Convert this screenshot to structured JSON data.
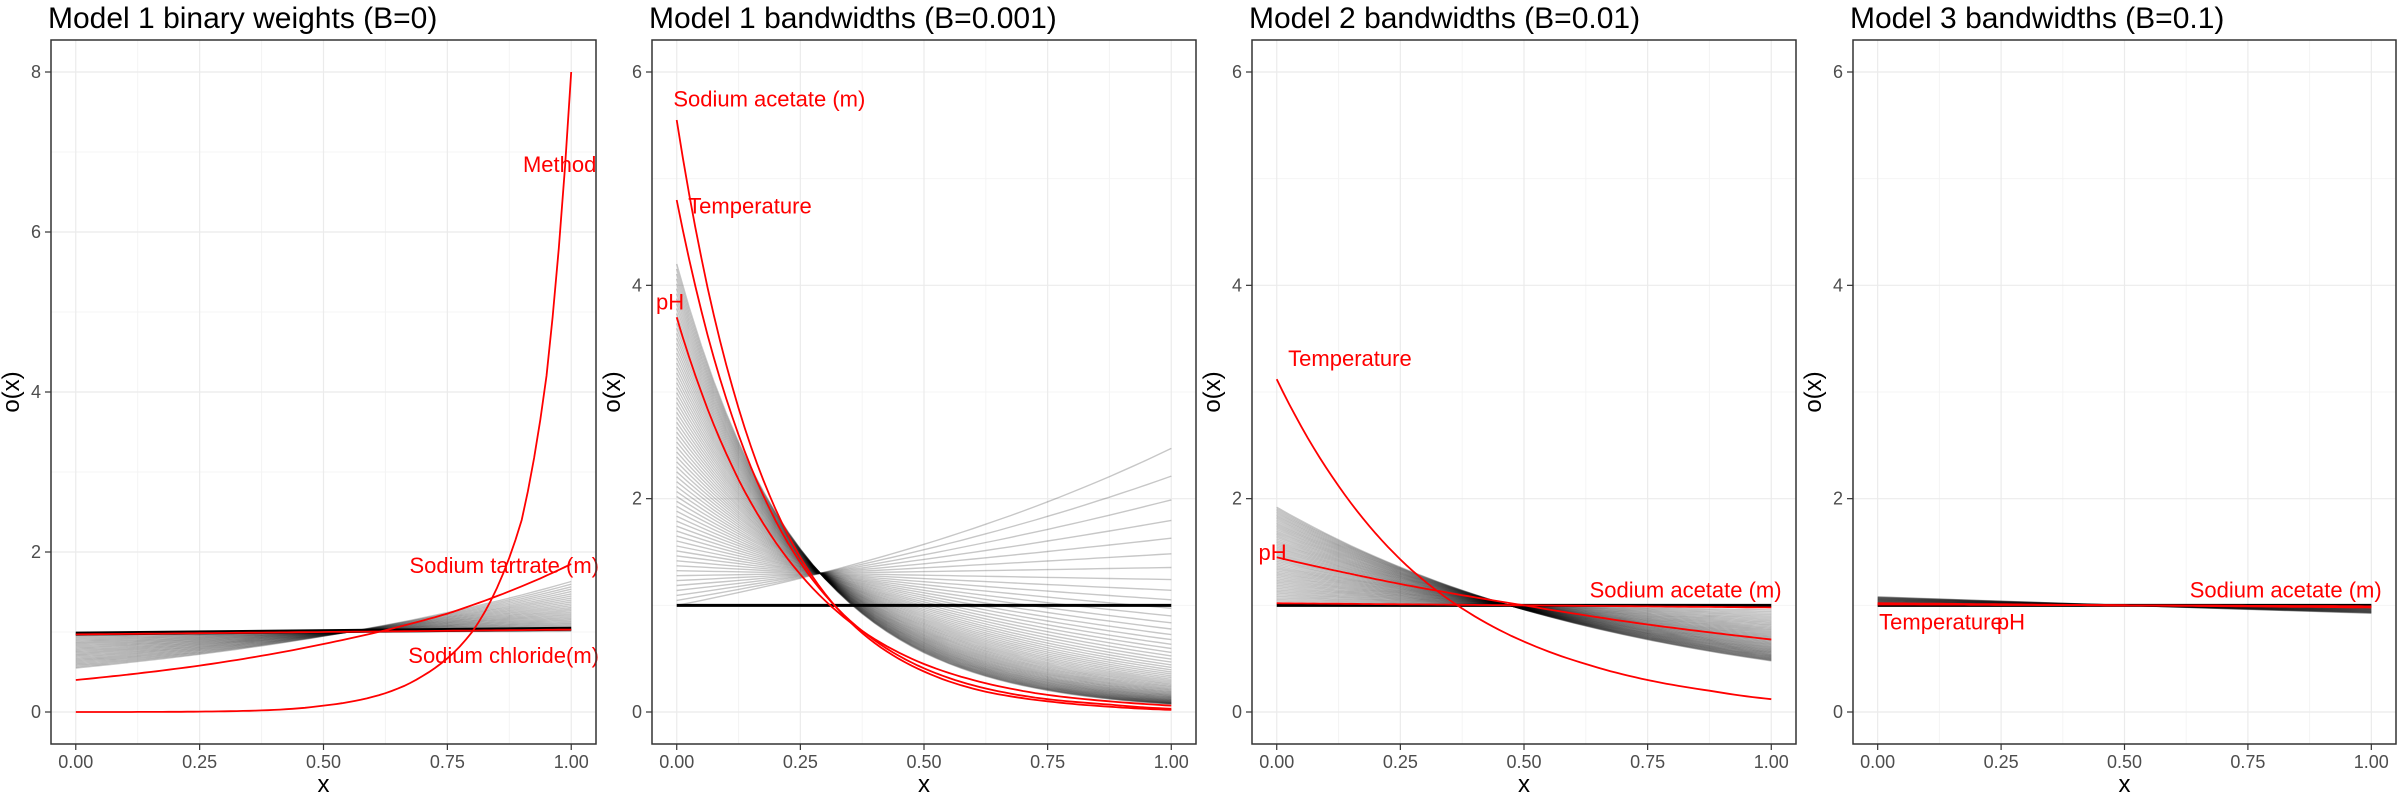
{
  "figure": {
    "colors": {
      "highlight": "#ff0000",
      "background_line": "#000000",
      "grid": "#ebebeb",
      "panel_border": "#333333",
      "axis_text": "#4d4d4d"
    }
  },
  "chart_data": [
    {
      "type": "line",
      "title": "Model 1 binary weights (B=0)",
      "xlabel": "x",
      "ylabel": "o(x)",
      "xlim": [
        -0.05,
        1.05
      ],
      "ylim": [
        -0.4,
        8.4
      ],
      "x_ticks": [
        0,
        0.25,
        0.5,
        0.75,
        1
      ],
      "x_tick_labels": [
        "0.00",
        "0.25",
        "0.50",
        "0.75",
        "1.00"
      ],
      "y_ticks": [
        0,
        2,
        4,
        6,
        8
      ],
      "y_tick_labels": [
        "0",
        "2",
        "4",
        "6",
        "8"
      ],
      "grid": true,
      "highlight_series": [
        {
          "name": "Method",
          "x": [
            0,
            0.25,
            0.5,
            0.7,
            0.8,
            0.9,
            0.95,
            1.0
          ],
          "y": [
            0.0,
            0.005,
            0.08,
            0.45,
            1.0,
            2.4,
            4.2,
            8.0
          ]
        },
        {
          "name": "Sodium tartrate (m)",
          "x": [
            0,
            0.25,
            0.5,
            0.75,
            1.0
          ],
          "y": [
            0.4,
            0.58,
            0.85,
            1.23,
            1.85
          ]
        },
        {
          "name": "Sodium chloride(m)",
          "x": [
            0,
            0.5,
            1.0
          ],
          "y": [
            0.97,
            1.0,
            1.03
          ]
        }
      ],
      "background_series": {
        "count": 32,
        "form": "exponential through (0.55, 1.0)",
        "y_at_0_range": [
          0.55,
          0.99
        ],
        "y_at_1_range": [
          1.02,
          1.72
        ]
      },
      "annotations": [
        {
          "text": "Method",
          "x": 0.97,
          "y": 6.85
        },
        {
          "text": "Sodium tartrate (m)",
          "x": 0.98,
          "y": 1.84
        },
        {
          "text": "Sodium chloride(m)",
          "x": 0.98,
          "y": 0.71
        }
      ]
    },
    {
      "type": "line",
      "title": "Model 1 bandwidths (B=0.001)",
      "xlabel": "x",
      "ylabel": "o(x)",
      "xlim": [
        -0.05,
        1.05
      ],
      "ylim": [
        -0.3,
        6.3
      ],
      "x_ticks": [
        0,
        0.25,
        0.5,
        0.75,
        1
      ],
      "x_tick_labels": [
        "0.00",
        "0.25",
        "0.50",
        "0.75",
        "1.00"
      ],
      "y_ticks": [
        0,
        2,
        4,
        6
      ],
      "y_tick_labels": [
        "0",
        "2",
        "4",
        "6"
      ],
      "grid": true,
      "highlight_series": [
        {
          "name": "Sodium acetate (m)",
          "x": [
            0,
            0.125,
            0.25,
            0.375,
            0.5,
            0.625,
            0.75,
            0.875,
            1.0
          ],
          "y": [
            5.55,
            2.85,
            1.45,
            0.74,
            0.38,
            0.19,
            0.1,
            0.05,
            0.02
          ]
        },
        {
          "name": "Temperature",
          "x": [
            0,
            0.125,
            0.25,
            0.375,
            0.5,
            0.625,
            0.75,
            0.875,
            1.0
          ],
          "y": [
            4.8,
            2.6,
            1.4,
            0.76,
            0.41,
            0.22,
            0.12,
            0.07,
            0.03
          ]
        },
        {
          "name": "pH",
          "x": [
            0,
            0.125,
            0.25,
            0.375,
            0.5,
            0.625,
            0.75,
            0.875,
            1.0
          ],
          "y": [
            3.7,
            2.18,
            1.29,
            0.76,
            0.45,
            0.27,
            0.16,
            0.1,
            0.06
          ]
        }
      ],
      "background_series": {
        "count": 70,
        "form": "exponential through (0.29, 1.3)",
        "y_at_0_range": [
          1.0,
          4.2
        ],
        "y_at_1_range": [
          0.04,
          0.99
        ]
      },
      "annotations": [
        {
          "text": "Sodium acetate (m)",
          "x": 0.07,
          "y": 5.75
        },
        {
          "text": "Temperature",
          "x": 0.1,
          "y": 4.75
        },
        {
          "text": "pH",
          "x": 0.02,
          "y": 3.85
        }
      ]
    },
    {
      "type": "line",
      "title": "Model 2 bandwidths (B=0.01)",
      "xlabel": "x",
      "ylabel": "o(x)",
      "xlim": [
        -0.05,
        1.05
      ],
      "ylim": [
        -0.3,
        6.3
      ],
      "x_ticks": [
        0,
        0.25,
        0.5,
        0.75,
        1
      ],
      "x_tick_labels": [
        "0.00",
        "0.25",
        "0.50",
        "0.75",
        "1.00"
      ],
      "y_ticks": [
        0,
        2,
        4,
        6
      ],
      "y_tick_labels": [
        "0",
        "2",
        "4",
        "6"
      ],
      "grid": true,
      "highlight_series": [
        {
          "name": "Temperature",
          "x": [
            0,
            0.125,
            0.25,
            0.375,
            0.5,
            0.625,
            0.75,
            0.875,
            1.0
          ],
          "y": [
            3.12,
            2.12,
            1.43,
            0.97,
            0.66,
            0.45,
            0.3,
            0.2,
            0.12
          ]
        },
        {
          "name": "pH",
          "x": [
            0,
            0.25,
            0.5,
            0.75,
            1.0
          ],
          "y": [
            1.45,
            1.2,
            1.0,
            0.82,
            0.68
          ]
        },
        {
          "name": "Sodium acetate (m)",
          "x": [
            0,
            0.5,
            1.0
          ],
          "y": [
            1.02,
            1.0,
            0.98
          ]
        }
      ],
      "background_series": {
        "count": 60,
        "form": "exponential through (0.47, 1.0)",
        "y_at_0_range": [
          1.04,
          1.92
        ],
        "y_at_1_range": [
          0.42,
          0.97
        ]
      },
      "annotations": [
        {
          "text": "Temperature",
          "x": 0.1,
          "y": 3.32
        },
        {
          "text": "pH",
          "x": 0.04,
          "y": 1.5
        },
        {
          "text": "Sodium acetate (m)",
          "x": 0.94,
          "y": 1.15
        }
      ]
    },
    {
      "type": "line",
      "title": "Model 3 bandwidths (B=0.1)",
      "xlabel": "x",
      "ylabel": "o(x)",
      "xlim": [
        -0.05,
        1.05
      ],
      "ylim": [
        -0.3,
        6.3
      ],
      "x_ticks": [
        0,
        0.25,
        0.5,
        0.75,
        1
      ],
      "x_tick_labels": [
        "0.00",
        "0.25",
        "0.50",
        "0.75",
        "1.00"
      ],
      "y_ticks": [
        0,
        2,
        4,
        6
      ],
      "y_tick_labels": [
        "0",
        "2",
        "4",
        "6"
      ],
      "grid": true,
      "highlight_series": [
        {
          "name": "Sodium acetate (m)",
          "x": [
            0,
            0.5,
            1.0
          ],
          "y": [
            1.01,
            1.0,
            0.99
          ]
        },
        {
          "name": "Temperature",
          "x": [
            0,
            0.5,
            1.0
          ],
          "y": [
            1.02,
            1.0,
            0.98
          ]
        },
        {
          "name": "pH",
          "x": [
            0,
            0.5,
            1.0
          ],
          "y": [
            1.01,
            1.0,
            0.99
          ]
        }
      ],
      "background_series": {
        "count": 30,
        "form": "exponential through (0.5, 1.0)",
        "y_at_0_range": [
          1.0,
          1.08
        ],
        "y_at_1_range": [
          0.9,
          1.0
        ]
      },
      "annotations": [
        {
          "text": "Sodium acetate (m)",
          "x": 0.94,
          "y": 1.15
        },
        {
          "text": "Temperature",
          "x": 0.08,
          "y": 0.85
        },
        {
          "text": "pH",
          "x": 0.27,
          "y": 0.85
        }
      ]
    }
  ]
}
